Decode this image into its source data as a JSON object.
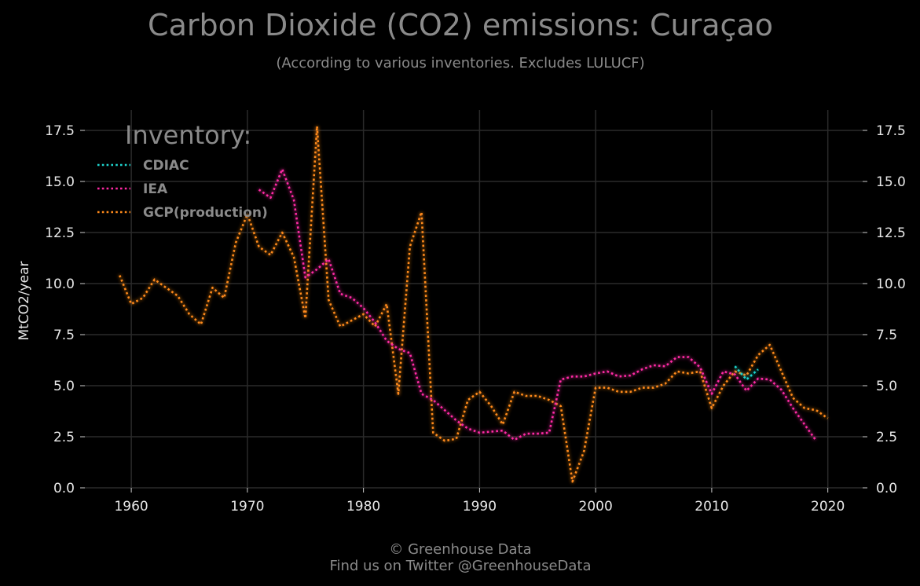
{
  "chart_data": {
    "type": "line",
    "title": "Carbon Dioxide (CO2) emissions: Curaçao",
    "subtitle": "(According to various inventories. Excludes LULUCF)",
    "xlabel": "",
    "ylabel": "MtCO2/year",
    "xlim": [
      1956,
      2023
    ],
    "ylim": [
      0,
      18.5
    ],
    "x_ticks": [
      "1960",
      "1970",
      "1980",
      "1990",
      "2000",
      "2010",
      "2020"
    ],
    "y_ticks": [
      "0.0",
      "2.5",
      "5.0",
      "7.5",
      "10.0",
      "12.5",
      "15.0",
      "17.5"
    ],
    "grid": true,
    "legend": {
      "title": "Inventory:",
      "placement": "top-left"
    },
    "series": [
      {
        "name": "CDIAC",
        "color": "#1fd6d0",
        "points": [
          [
            2012,
            5.95
          ],
          [
            2013,
            5.3
          ],
          [
            2014,
            5.8
          ]
        ]
      },
      {
        "name": "IEA",
        "color": "#ff2aa5",
        "points": [
          [
            1971,
            14.6
          ],
          [
            1972,
            14.2
          ],
          [
            1973,
            15.6
          ],
          [
            1974,
            14.1
          ],
          [
            1975,
            10.3
          ],
          [
            1976,
            10.7
          ],
          [
            1977,
            11.2
          ],
          [
            1978,
            9.5
          ],
          [
            1979,
            9.3
          ],
          [
            1980,
            8.8
          ],
          [
            1981,
            8.1
          ],
          [
            1982,
            7.2
          ],
          [
            1983,
            6.8
          ],
          [
            1984,
            6.6
          ],
          [
            1985,
            4.6
          ],
          [
            1986,
            4.3
          ],
          [
            1987,
            3.8
          ],
          [
            1988,
            3.3
          ],
          [
            1989,
            2.9
          ],
          [
            1990,
            2.7
          ],
          [
            1991,
            2.75
          ],
          [
            1992,
            2.8
          ],
          [
            1993,
            2.35
          ],
          [
            1994,
            2.65
          ],
          [
            1995,
            2.65
          ],
          [
            1996,
            2.7
          ],
          [
            1997,
            5.3
          ],
          [
            1998,
            5.45
          ],
          [
            1999,
            5.45
          ],
          [
            2000,
            5.6
          ],
          [
            2001,
            5.7
          ],
          [
            2002,
            5.45
          ],
          [
            2003,
            5.5
          ],
          [
            2004,
            5.8
          ],
          [
            2005,
            6.0
          ],
          [
            2006,
            5.95
          ],
          [
            2007,
            6.4
          ],
          [
            2008,
            6.4
          ],
          [
            2009,
            5.9
          ],
          [
            2010,
            4.6
          ],
          [
            2011,
            5.7
          ],
          [
            2012,
            5.55
          ],
          [
            2013,
            4.75
          ],
          [
            2014,
            5.35
          ],
          [
            2015,
            5.3
          ],
          [
            2016,
            4.8
          ],
          [
            2017,
            3.9
          ],
          [
            2018,
            3.1
          ],
          [
            2019,
            2.3
          ]
        ]
      },
      {
        "name": "GCP(production)",
        "color": "#ff8a1a",
        "points": [
          [
            1959,
            10.4
          ],
          [
            1960,
            9.0
          ],
          [
            1961,
            9.3
          ],
          [
            1962,
            10.2
          ],
          [
            1963,
            9.8
          ],
          [
            1964,
            9.4
          ],
          [
            1965,
            8.5
          ],
          [
            1966,
            8.0
          ],
          [
            1967,
            9.8
          ],
          [
            1968,
            9.3
          ],
          [
            1969,
            12.0
          ],
          [
            1970,
            13.4
          ],
          [
            1971,
            11.8
          ],
          [
            1972,
            11.4
          ],
          [
            1973,
            12.5
          ],
          [
            1974,
            11.3
          ],
          [
            1975,
            8.3
          ],
          [
            1976,
            17.7
          ],
          [
            1977,
            9.2
          ],
          [
            1978,
            7.9
          ],
          [
            1979,
            8.2
          ],
          [
            1980,
            8.5
          ],
          [
            1981,
            7.9
          ],
          [
            1982,
            9.0
          ],
          [
            1983,
            4.6
          ],
          [
            1984,
            11.8
          ],
          [
            1985,
            13.5
          ],
          [
            1986,
            2.7
          ],
          [
            1987,
            2.3
          ],
          [
            1988,
            2.4
          ],
          [
            1989,
            4.3
          ],
          [
            1990,
            4.7
          ],
          [
            1991,
            4.0
          ],
          [
            1992,
            3.1
          ],
          [
            1993,
            4.7
          ],
          [
            1994,
            4.5
          ],
          [
            1995,
            4.5
          ],
          [
            1996,
            4.3
          ],
          [
            1997,
            4.0
          ],
          [
            1998,
            0.3
          ],
          [
            1999,
            1.8
          ],
          [
            2000,
            4.9
          ],
          [
            2001,
            4.9
          ],
          [
            2002,
            4.7
          ],
          [
            2003,
            4.7
          ],
          [
            2004,
            4.9
          ],
          [
            2005,
            4.9
          ],
          [
            2006,
            5.1
          ],
          [
            2007,
            5.7
          ],
          [
            2008,
            5.6
          ],
          [
            2009,
            5.7
          ],
          [
            2010,
            3.9
          ],
          [
            2011,
            5.0
          ],
          [
            2012,
            5.7
          ],
          [
            2013,
            5.5
          ],
          [
            2014,
            6.5
          ],
          [
            2015,
            7.0
          ],
          [
            2016,
            5.7
          ],
          [
            2017,
            4.4
          ],
          [
            2018,
            3.9
          ],
          [
            2019,
            3.8
          ],
          [
            2020,
            3.4
          ]
        ]
      }
    ]
  },
  "footer": {
    "line1": "© Greenhouse Data",
    "line2": "Find us on Twitter @GreenhouseData"
  }
}
